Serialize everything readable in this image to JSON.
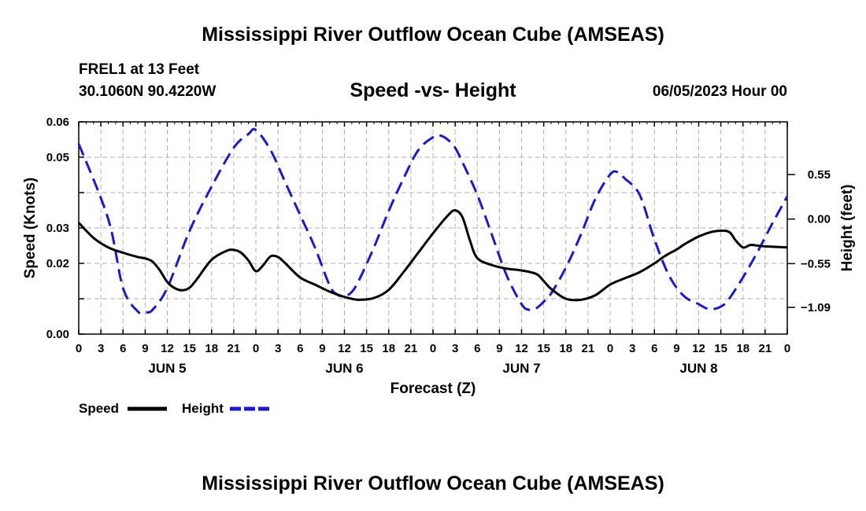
{
  "header": {
    "title": "Mississippi River Outflow Ocean Cube (AMSEAS)",
    "station": "FREL1 at 13 Feet",
    "coords": "30.1060N  90.4220W",
    "chart_title": "Speed -vs- Height",
    "datetime": "06/05/2023 Hour 00",
    "footer_title": "Mississippi River Outflow Ocean Cube (AMSEAS)"
  },
  "legend": {
    "speed_label": "Speed",
    "height_label": "Height"
  },
  "colors": {
    "speed": "#000000",
    "height": "#1a1acc",
    "grid": "#b0b0b0"
  },
  "chart_data": {
    "type": "line",
    "title": "Speed -vs- Height",
    "xlabel": "Forecast (Z)",
    "ylabel": "Speed (Knots)",
    "y2label": "Height (feet)",
    "xlim": [
      0,
      96
    ],
    "ylim": [
      0,
      0.06
    ],
    "y2lim": [
      -1.42,
      1.2
    ],
    "x_ticks": [
      0,
      3,
      6,
      9,
      12,
      15,
      18,
      21,
      24,
      27,
      30,
      33,
      36,
      39,
      42,
      45,
      48,
      51,
      54,
      57,
      60,
      63,
      66,
      69,
      72,
      75,
      78,
      81,
      84,
      87,
      90,
      93,
      96
    ],
    "x_tick_labels": [
      "0",
      "3",
      "6",
      "9",
      "12",
      "15",
      "18",
      "21",
      "0",
      "3",
      "6",
      "9",
      "12",
      "15",
      "18",
      "21",
      "0",
      "3",
      "6",
      "9",
      "12",
      "15",
      "18",
      "21",
      "0",
      "3",
      "6",
      "9",
      "12",
      "15",
      "18",
      "21",
      "0"
    ],
    "y_ticks": [
      0,
      0.01,
      0.02,
      0.03,
      0.04,
      0.05,
      0.06
    ],
    "y_tick_labels": [
      "0.00",
      "",
      "0.02",
      "0.03",
      "",
      "0.05",
      "0.06"
    ],
    "y2_ticks": [
      0.55,
      0.0,
      -0.55,
      -1.09
    ],
    "y2_tick_labels": [
      "0.55",
      "0.00",
      "−0.55",
      "−1.09"
    ],
    "day_labels": [
      {
        "x": 12,
        "label": "JUN 5"
      },
      {
        "x": 36,
        "label": "JUN 6"
      },
      {
        "x": 60,
        "label": "JUN 7"
      },
      {
        "x": 84,
        "label": "JUN 8"
      }
    ],
    "series": [
      {
        "name": "Speed",
        "axis": "left",
        "x": [
          0,
          2,
          4,
          6,
          8,
          9,
          10,
          11,
          12,
          13,
          14,
          15,
          16,
          18,
          20,
          21,
          22,
          23,
          24,
          25,
          26,
          27,
          28,
          30,
          32,
          34,
          36,
          37,
          38,
          40,
          42,
          44,
          46,
          48,
          50,
          51,
          52,
          53,
          54,
          56,
          58,
          60,
          62,
          63,
          64,
          66,
          68,
          70,
          72,
          74,
          76,
          78,
          79,
          80,
          81,
          82,
          83,
          84,
          86,
          88,
          89,
          90,
          91,
          92,
          93,
          94,
          96
        ],
        "values": [
          0.0315,
          0.0272,
          0.0245,
          0.023,
          0.0218,
          0.0214,
          0.0205,
          0.018,
          0.0147,
          0.013,
          0.0124,
          0.0131,
          0.0155,
          0.021,
          0.0235,
          0.0238,
          0.023,
          0.0208,
          0.0178,
          0.0195,
          0.022,
          0.0218,
          0.02,
          0.016,
          0.014,
          0.012,
          0.0105,
          0.01,
          0.0097,
          0.0102,
          0.0125,
          0.0175,
          0.023,
          0.0285,
          0.0335,
          0.035,
          0.033,
          0.0265,
          0.0215,
          0.0195,
          0.0185,
          0.018,
          0.017,
          0.015,
          0.0128,
          0.01,
          0.0097,
          0.011,
          0.014,
          0.0158,
          0.0175,
          0.02,
          0.0215,
          0.0228,
          0.0239,
          0.0253,
          0.0265,
          0.0276,
          0.029,
          0.029,
          0.0265,
          0.0245,
          0.0252,
          0.025,
          0.0248,
          0.0247,
          0.0245
        ]
      },
      {
        "name": "Height",
        "axis": "right",
        "x": [
          0,
          4,
          6,
          8,
          9,
          10,
          12,
          15,
          18,
          21,
          23,
          24,
          26,
          28,
          30,
          32,
          34,
          35,
          36,
          37,
          38,
          40,
          42,
          44,
          46,
          48,
          49,
          50,
          51,
          52,
          54,
          56,
          58,
          60,
          61,
          62,
          63,
          64,
          66,
          68,
          70,
          72,
          73,
          74,
          76,
          78,
          80,
          82,
          84,
          85,
          86,
          87,
          88,
          90,
          92,
          94,
          96
        ],
        "values": [
          0.93,
          0.0,
          -0.85,
          -1.14,
          -1.15,
          -1.12,
          -0.85,
          -0.15,
          0.4,
          0.88,
          1.05,
          1.1,
          0.85,
          0.45,
          0.05,
          -0.35,
          -0.82,
          -0.93,
          -0.95,
          -0.9,
          -0.75,
          -0.35,
          0.1,
          0.5,
          0.85,
          1.01,
          1.03,
          0.98,
          0.88,
          0.7,
          0.3,
          -0.2,
          -0.7,
          -1.05,
          -1.12,
          -1.1,
          -1.02,
          -0.92,
          -0.6,
          -0.2,
          0.25,
          0.55,
          0.58,
          0.5,
          0.3,
          -0.25,
          -0.7,
          -0.95,
          -1.05,
          -1.1,
          -1.11,
          -1.08,
          -1.0,
          -0.72,
          -0.4,
          -0.05,
          0.28
        ]
      }
    ]
  }
}
